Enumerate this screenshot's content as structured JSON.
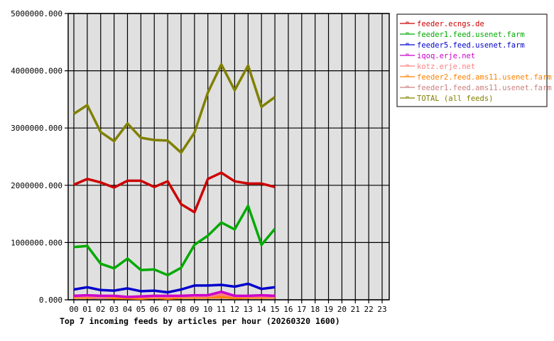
{
  "chart_data": {
    "type": "line",
    "title": "Top 7 incoming feeds by articles per hour (20260320 1600)",
    "xlabel": "",
    "ylabel": "",
    "ylim": [
      0,
      5000000
    ],
    "yticks": [
      "0.000",
      "1000000.000",
      "2000000.000",
      "3000000.000",
      "4000000.000",
      "5000000.000"
    ],
    "ytick_values": [
      0,
      1000000,
      2000000,
      3000000,
      4000000,
      5000000
    ],
    "categories": [
      "00",
      "01",
      "02",
      "03",
      "04",
      "05",
      "06",
      "07",
      "08",
      "09",
      "10",
      "11",
      "12",
      "13",
      "14",
      "15",
      "16",
      "17",
      "18",
      "19",
      "20",
      "21",
      "22",
      "23"
    ],
    "grid": true,
    "legend_position": "right",
    "series": [
      {
        "name": "feeder.ecngs.de",
        "color": "#cc0000",
        "values": [
          2010000,
          2110000,
          2050000,
          1960000,
          2080000,
          2080000,
          1970000,
          2070000,
          1670000,
          1530000,
          2110000,
          2220000,
          2070000,
          2030000,
          2030000,
          1970000
        ]
      },
      {
        "name": "feeder1.feed.usenet.farm",
        "color": "#00aa00",
        "values": [
          920000,
          940000,
          630000,
          550000,
          720000,
          520000,
          530000,
          430000,
          560000,
          960000,
          1120000,
          1350000,
          1230000,
          1640000,
          960000,
          1240000
        ]
      },
      {
        "name": "feeder5.feed.usenet.farm",
        "color": "#0000cc",
        "values": [
          180000,
          220000,
          170000,
          160000,
          200000,
          150000,
          160000,
          130000,
          180000,
          250000,
          250000,
          260000,
          230000,
          280000,
          190000,
          220000
        ]
      },
      {
        "name": "iqoq.erje.net",
        "color": "#cc00cc",
        "values": [
          70000,
          80000,
          70000,
          70000,
          50000,
          60000,
          70000,
          70000,
          70000,
          80000,
          80000,
          140000,
          70000,
          70000,
          80000,
          70000
        ]
      },
      {
        "name": "kotz.erje.net",
        "color": "#ff8080",
        "values": [
          60000,
          60000,
          50000,
          60000,
          50000,
          50000,
          50000,
          50000,
          60000,
          60000,
          60000,
          90000,
          60000,
          60000,
          60000,
          50000
        ]
      },
      {
        "name": "feeder2.feed.ams11.usenet.farm",
        "color": "#ff8000",
        "values": [
          40000,
          40000,
          60000,
          30000,
          30000,
          20000,
          40000,
          20000,
          40000,
          40000,
          40000,
          50000,
          30000,
          40000,
          40000,
          40000
        ]
      },
      {
        "name": "feeder1.feed.ams11.usenet.farm",
        "color": "#cc8080",
        "values": [
          40000,
          40000,
          30000,
          40000,
          30000,
          40000,
          40000,
          40000,
          40000,
          40000,
          40000,
          40000,
          40000,
          40000,
          40000,
          40000
        ]
      },
      {
        "name": "TOTAL (all feeds)",
        "color": "#808000",
        "values": [
          3250000,
          3400000,
          2930000,
          2770000,
          3080000,
          2830000,
          2790000,
          2780000,
          2570000,
          2920000,
          3620000,
          4110000,
          3660000,
          4090000,
          3370000,
          3540000
        ]
      }
    ]
  },
  "style": {
    "plot_bg": "#e0e0e0",
    "grid_color": "#000000",
    "legend_border": "#000000"
  }
}
